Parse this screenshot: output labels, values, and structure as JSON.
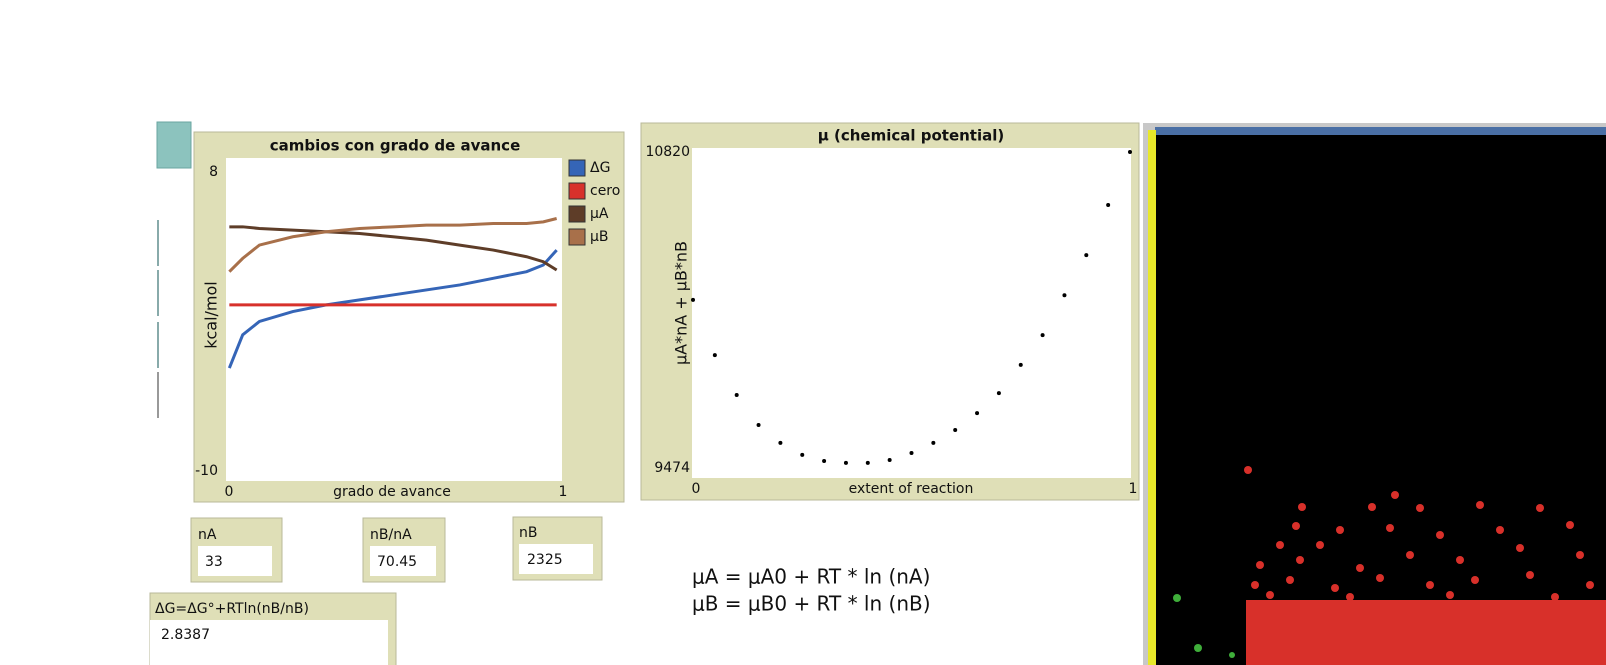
{
  "chart_data": [
    {
      "type": "line",
      "title": "cambios con grado de avance",
      "x_label": "grado de avance",
      "y_label": "kcal/mol",
      "xlim": [
        0,
        1
      ],
      "xticks": [
        0,
        1
      ],
      "ylim": [
        -10,
        8
      ],
      "yticks": [
        -10,
        8
      ],
      "legend": "right",
      "x": [
        0.01,
        0.05,
        0.1,
        0.2,
        0.3,
        0.4,
        0.5,
        0.6,
        0.7,
        0.8,
        0.9,
        0.95,
        0.99
      ],
      "series": [
        {
          "name": "ΔG",
          "color": "#3565b7",
          "values": [
            -3.8,
            -1.8,
            -1.0,
            -0.4,
            0,
            0.3,
            0.6,
            0.9,
            1.2,
            1.6,
            2.0,
            2.4,
            3.3
          ]
        },
        {
          "name": "cero",
          "color": "#d7312b",
          "values": [
            0,
            0,
            0,
            0,
            0,
            0,
            0,
            0,
            0,
            0,
            0,
            0,
            0
          ]
        },
        {
          "name": "μA",
          "color": "#5e3d28",
          "values": [
            4.7,
            4.7,
            4.6,
            4.5,
            4.4,
            4.3,
            4.1,
            3.9,
            3.6,
            3.3,
            2.9,
            2.6,
            2.1
          ]
        },
        {
          "name": "μB",
          "color": "#a8704a",
          "values": [
            2.0,
            2.8,
            3.6,
            4.1,
            4.4,
            4.6,
            4.7,
            4.8,
            4.8,
            4.9,
            4.9,
            5.0,
            5.2
          ]
        }
      ]
    },
    {
      "type": "scatter",
      "title": "μ (chemical potential)",
      "x_label": "extent of reaction",
      "y_label": "μA*nA + μB*nB",
      "xlim": [
        0,
        1
      ],
      "xticks": [
        0,
        1
      ],
      "ylim": [
        9474,
        10820
      ],
      "yticks": [
        9474,
        10820
      ],
      "color": "#000000",
      "x": [
        0,
        0.05,
        0.1,
        0.15,
        0.2,
        0.25,
        0.3,
        0.35,
        0.4,
        0.45,
        0.5,
        0.55,
        0.6,
        0.65,
        0.7,
        0.75,
        0.8,
        0.85,
        0.9,
        0.95,
        1
      ],
      "values": [
        10190,
        9955,
        9785,
        9657,
        9581,
        9530,
        9504,
        9496,
        9496,
        9508,
        9538,
        9581,
        9636,
        9708,
        9793,
        9913,
        10040,
        10210,
        10381,
        10594,
        10820
      ]
    }
  ],
  "monitors": [
    {
      "label": "nA",
      "value": 33
    },
    {
      "label": "nB/nA",
      "value": 70.45
    },
    {
      "label": "nB",
      "value": 2325
    },
    {
      "label": "ΔG=ΔG°+RTln(nB/nB)",
      "value": 2.8387
    }
  ],
  "note": {
    "lines": [
      "μA = μA0 + RT * ln (nA)",
      "μB = μB0 + RT * ln (nB)"
    ]
  }
}
